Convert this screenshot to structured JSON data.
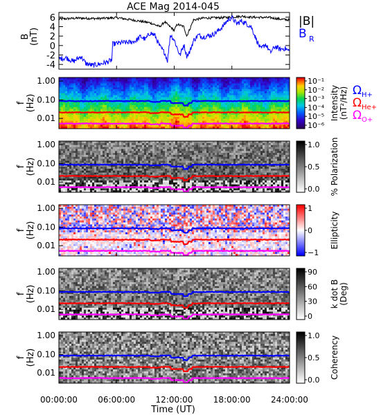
{
  "chart_data": {
    "title": "ACE Mag 2014-045",
    "type": "spectrogram-panels",
    "x": {
      "label": "Time (UT)",
      "ticks": [
        "00:00:00",
        "06:00:00",
        "12:00:00",
        "18:00:00",
        "24:00:00"
      ],
      "range_hours": [
        0,
        24
      ]
    },
    "panel_b": {
      "type": "line",
      "ylabel": "B",
      "yunit": "(nT)",
      "ylim": [
        -5,
        7
      ],
      "yticks": [
        "6",
        "4",
        "2",
        "0",
        "-2",
        "-4"
      ],
      "ytick_values": [
        6,
        4,
        2,
        0,
        -2,
        -4
      ],
      "series": [
        {
          "name": "|B|",
          "color": "#000000",
          "points": [
            [
              0,
              5.6
            ],
            [
              2,
              5.8
            ],
            [
              4,
              5.7
            ],
            [
              6,
              5.9
            ],
            [
              8,
              5.3
            ],
            [
              9.5,
              4.8
            ],
            [
              10.5,
              4.0
            ],
            [
              11,
              5.0
            ],
            [
              12,
              3.2
            ],
            [
              12.3,
              4.5
            ],
            [
              13,
              4.0
            ],
            [
              13.3,
              2.0
            ],
            [
              13.6,
              3.4
            ],
            [
              14,
              5.4
            ],
            [
              15,
              5.8
            ],
            [
              17,
              5.9
            ],
            [
              18,
              6.0
            ],
            [
              19,
              6.2
            ],
            [
              20,
              6.0
            ],
            [
              22,
              5.9
            ],
            [
              23,
              5.6
            ],
            [
              24,
              5.4
            ]
          ]
        },
        {
          "name": "B_R",
          "color": "#0000ff",
          "points": [
            [
              0,
              -2.8
            ],
            [
              0.8,
              -2.6
            ],
            [
              1.5,
              -3.4
            ],
            [
              2.3,
              -2.3
            ],
            [
              2.8,
              -3.8
            ],
            [
              3.5,
              -4.2
            ],
            [
              4.3,
              -3.9
            ],
            [
              5,
              -3.5
            ],
            [
              5.5,
              -3.1
            ],
            [
              5.6,
              0.3
            ],
            [
              6.5,
              0.6
            ],
            [
              7.5,
              0.7
            ],
            [
              8,
              1.0
            ],
            [
              8.5,
              1.9
            ],
            [
              9,
              1.3
            ],
            [
              9.5,
              2.7
            ],
            [
              10,
              2.1
            ],
            [
              10.5,
              -0.2
            ],
            [
              11,
              -1.5
            ],
            [
              11.3,
              -3.2
            ],
            [
              11.6,
              2.3
            ],
            [
              12,
              1.2
            ],
            [
              12.3,
              -0.5
            ],
            [
              12.6,
              -2.1
            ],
            [
              13,
              0.2
            ],
            [
              13.3,
              -2.2
            ],
            [
              13.6,
              -1.4
            ],
            [
              14,
              1.0
            ],
            [
              14.5,
              2.2
            ],
            [
              15,
              1.8
            ],
            [
              16,
              2.3
            ],
            [
              16.5,
              3.0
            ],
            [
              17,
              3.9
            ],
            [
              17.5,
              5.2
            ],
            [
              18,
              6.0
            ],
            [
              18.5,
              4.6
            ],
            [
              19,
              5.2
            ],
            [
              20,
              4.0
            ],
            [
              20.5,
              1.5
            ],
            [
              21,
              -0.8
            ],
            [
              21.5,
              0.3
            ],
            [
              22,
              -1.5
            ],
            [
              22.5,
              -0.2
            ],
            [
              23,
              -0.8
            ],
            [
              23.5,
              -0.6
            ],
            [
              24,
              -1.2
            ]
          ]
        }
      ]
    },
    "spectral_panels": [
      {
        "id": "intensity",
        "ylabel": "f",
        "yunit": "(Hz)",
        "yticks": [
          "1.00",
          "0.10",
          "0.01"
        ],
        "colorbar_label": "Intensity",
        "colorbar_unit": "(nT²/Hz)",
        "colorbar_ticks": [
          "10⁻¹",
          "10⁻²",
          "10⁻³",
          "10⁻⁴",
          "10⁻⁵",
          "10⁻⁶"
        ],
        "colormap": "rainbow"
      },
      {
        "id": "polarization",
        "ylabel": "f",
        "yunit": "(Hz)",
        "yticks": [
          "1.00",
          "0.10",
          "0.01"
        ],
        "colorbar_label": "% Polarization",
        "colorbar_ticks": [
          "1.0",
          "0.5",
          "0.0"
        ],
        "colormap": "gray"
      },
      {
        "id": "ellipticity",
        "ylabel": "f",
        "yunit": "(Hz)",
        "yticks": [
          "1.00",
          "0.10",
          "0.01"
        ],
        "colorbar_label": "Ellipticity",
        "colorbar_ticks": [
          "1",
          "0",
          "−1"
        ],
        "colormap": "bwr"
      },
      {
        "id": "kdotb",
        "ylabel": "f",
        "yunit": "(Hz)",
        "yticks": [
          "1.00",
          "0.10",
          "0.01"
        ],
        "colorbar_label": "k dot B",
        "colorbar_unit": "(Deg)",
        "colorbar_ticks": [
          "90",
          "60",
          "30",
          "0"
        ],
        "colormap": "gray"
      },
      {
        "id": "coherency",
        "ylabel": "f",
        "yunit": "(Hz)",
        "yticks": [
          "1.00",
          "0.10",
          "0.01"
        ],
        "colorbar_label": "Coherency",
        "colorbar_ticks": [
          "1.0",
          "0.5",
          "0.0"
        ],
        "colormap": "gray"
      }
    ],
    "gyrofrequency_lines": [
      {
        "label": "Ω",
        "sub": "H+",
        "color": "#0000ff",
        "f_hz_base": 0.085
      },
      {
        "label": "Ω",
        "sub": "He+",
        "color": "#ff0000",
        "f_hz_base": 0.021
      },
      {
        "label": "Ω",
        "sub": "O+",
        "color": "#ff00ff",
        "f_hz_base": 0.0053
      }
    ],
    "legend": {
      "b_abs": "|B|",
      "b_r": "B",
      "b_r_sub": "R"
    }
  }
}
